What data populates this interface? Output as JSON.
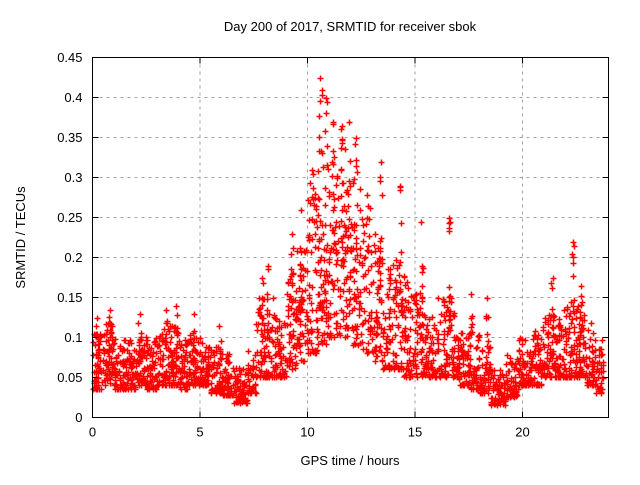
{
  "chart_data": {
    "type": "scatter",
    "title": "Day 200 of 2017, SRMTID for receiver sbok",
    "xlabel": "GPS time / hours",
    "ylabel": "SRMTID / TECUs",
    "xlim": [
      0,
      24
    ],
    "ylim": [
      0,
      0.45
    ],
    "xticks": [
      [
        0,
        "0"
      ],
      [
        5,
        "5"
      ],
      [
        10,
        "10"
      ],
      [
        15,
        "15"
      ],
      [
        20,
        "20"
      ]
    ],
    "yticks": [
      [
        0,
        "0"
      ],
      [
        0.05,
        "0.05"
      ],
      [
        0.1,
        "0.1"
      ],
      [
        0.15,
        "0.15"
      ],
      [
        0.2,
        "0.2"
      ],
      [
        0.25,
        "0.25"
      ],
      [
        0.3,
        "0.3"
      ],
      [
        0.35,
        "0.35"
      ],
      [
        0.4,
        "0.4"
      ],
      [
        0.45,
        "0.45"
      ]
    ],
    "grid": true,
    "legend": "none",
    "marker": {
      "shape": "plus",
      "color": "#ff0000",
      "size": 7
    },
    "grid_color": "#a0a0a0",
    "axis_color": "#000000",
    "background": "#ffffff",
    "seed": 7,
    "description": "Dense red plus-marker scatter: baseline ~0.05 TECUs 0-7h, dip ~0.02 near 7h, broad daytime enhancement peaking ~0.42 near 10.6h, decaying with spikes to ~19h minimum ~0.02, mild evening rise with spike ~0.22 near 22.4h",
    "bands": [
      [
        0,
        0.5,
        0.035,
        0.105,
        55,
        1.8
      ],
      [
        0.5,
        1,
        0.04,
        0.12,
        55,
        1.8
      ],
      [
        1,
        1.5,
        0.035,
        0.1,
        55,
        1.8
      ],
      [
        1.5,
        2,
        0.035,
        0.1,
        55,
        1.8
      ],
      [
        2,
        2.5,
        0.04,
        0.105,
        55,
        1.8
      ],
      [
        2.5,
        3,
        0.035,
        0.1,
        55,
        1.8
      ],
      [
        3,
        3.5,
        0.04,
        0.11,
        55,
        1.8
      ],
      [
        3.5,
        4,
        0.04,
        0.115,
        55,
        1.8
      ],
      [
        4,
        4.5,
        0.035,
        0.105,
        55,
        1.8
      ],
      [
        4.5,
        5,
        0.04,
        0.11,
        55,
        1.8
      ],
      [
        5,
        5.5,
        0.04,
        0.095,
        55,
        1.8
      ],
      [
        5.5,
        6,
        0.03,
        0.09,
        55,
        1.8
      ],
      [
        6,
        6.5,
        0.028,
        0.08,
        55,
        1.8
      ],
      [
        6.5,
        7.2,
        0.018,
        0.062,
        70,
        1.5
      ],
      [
        7.2,
        7.6,
        0.03,
        0.085,
        40,
        1.5
      ],
      [
        7.6,
        8.5,
        0.05,
        0.15,
        80,
        1.8
      ],
      [
        8.5,
        9,
        0.05,
        0.125,
        50,
        1.8
      ],
      [
        9,
        9.5,
        0.06,
        0.18,
        50,
        1.6
      ],
      [
        9.5,
        10,
        0.07,
        0.22,
        50,
        1.6
      ],
      [
        10,
        10.5,
        0.08,
        0.28,
        50,
        1.5
      ],
      [
        10.5,
        11,
        0.09,
        0.33,
        50,
        1.5
      ],
      [
        11,
        11.5,
        0.1,
        0.32,
        50,
        1.4
      ],
      [
        11.5,
        12,
        0.1,
        0.34,
        50,
        1.4
      ],
      [
        12,
        12.5,
        0.09,
        0.3,
        50,
        1.5
      ],
      [
        12.5,
        13,
        0.08,
        0.28,
        50,
        1.5
      ],
      [
        13,
        13.5,
        0.07,
        0.24,
        50,
        1.6
      ],
      [
        13.5,
        14,
        0.06,
        0.2,
        50,
        1.6
      ],
      [
        14,
        14.5,
        0.06,
        0.2,
        50,
        1.6
      ],
      [
        14.5,
        15,
        0.05,
        0.17,
        50,
        1.7
      ],
      [
        15,
        15.5,
        0.05,
        0.16,
        50,
        1.7
      ],
      [
        15.5,
        16,
        0.05,
        0.13,
        50,
        1.8
      ],
      [
        16,
        16.5,
        0.05,
        0.15,
        50,
        1.8
      ],
      [
        16.5,
        17,
        0.05,
        0.16,
        50,
        1.8
      ],
      [
        17,
        17.5,
        0.04,
        0.12,
        50,
        1.8
      ],
      [
        17.5,
        18,
        0.035,
        0.11,
        50,
        1.8
      ],
      [
        18,
        18.5,
        0.03,
        0.1,
        50,
        1.8
      ],
      [
        18.5,
        19.2,
        0.015,
        0.06,
        70,
        1.5
      ],
      [
        19.2,
        19.8,
        0.025,
        0.08,
        60,
        1.6
      ],
      [
        19.8,
        20.5,
        0.04,
        0.1,
        70,
        1.8
      ],
      [
        20.5,
        21,
        0.04,
        0.12,
        55,
        1.8
      ],
      [
        21,
        21.5,
        0.05,
        0.13,
        55,
        1.8
      ],
      [
        21.5,
        22,
        0.05,
        0.14,
        55,
        1.8
      ],
      [
        22,
        22.5,
        0.05,
        0.15,
        55,
        1.8
      ],
      [
        22.5,
        23,
        0.05,
        0.15,
        55,
        1.8
      ],
      [
        23,
        23.4,
        0.04,
        0.12,
        45,
        1.8
      ],
      [
        23.4,
        23.75,
        0.03,
        0.1,
        35,
        1.6
      ]
    ],
    "spikes": [
      [
        0.2,
        0.05,
        0.125,
        8
      ],
      [
        0.8,
        0.06,
        0.135,
        10
      ],
      [
        2.2,
        0.05,
        0.13,
        8
      ],
      [
        3.4,
        0.05,
        0.135,
        8
      ],
      [
        3.9,
        0.05,
        0.14,
        8
      ],
      [
        4.7,
        0.05,
        0.13,
        8
      ],
      [
        5.9,
        0.04,
        0.115,
        6
      ],
      [
        7.9,
        0.05,
        0.175,
        10
      ],
      [
        8.15,
        0.06,
        0.19,
        10
      ],
      [
        9.3,
        0.07,
        0.23,
        10
      ],
      [
        9.7,
        0.08,
        0.26,
        10
      ],
      [
        10.2,
        0.09,
        0.31,
        12
      ],
      [
        10.6,
        0.12,
        0.425,
        16
      ],
      [
        10.85,
        0.12,
        0.4,
        12
      ],
      [
        11.2,
        0.12,
        0.37,
        12
      ],
      [
        11.6,
        0.12,
        0.365,
        12
      ],
      [
        11.95,
        0.14,
        0.37,
        14
      ],
      [
        12.25,
        0.12,
        0.35,
        10
      ],
      [
        13.4,
        0.1,
        0.32,
        12
      ],
      [
        14.3,
        0.09,
        0.29,
        10
      ],
      [
        15.3,
        0.08,
        0.245,
        10
      ],
      [
        16.6,
        0.08,
        0.25,
        12
      ],
      [
        17.6,
        0.05,
        0.155,
        8
      ],
      [
        18.35,
        0.05,
        0.15,
        8
      ],
      [
        21.4,
        0.06,
        0.175,
        10
      ],
      [
        22.35,
        0.06,
        0.22,
        12
      ],
      [
        22.7,
        0.06,
        0.165,
        8
      ]
    ]
  }
}
